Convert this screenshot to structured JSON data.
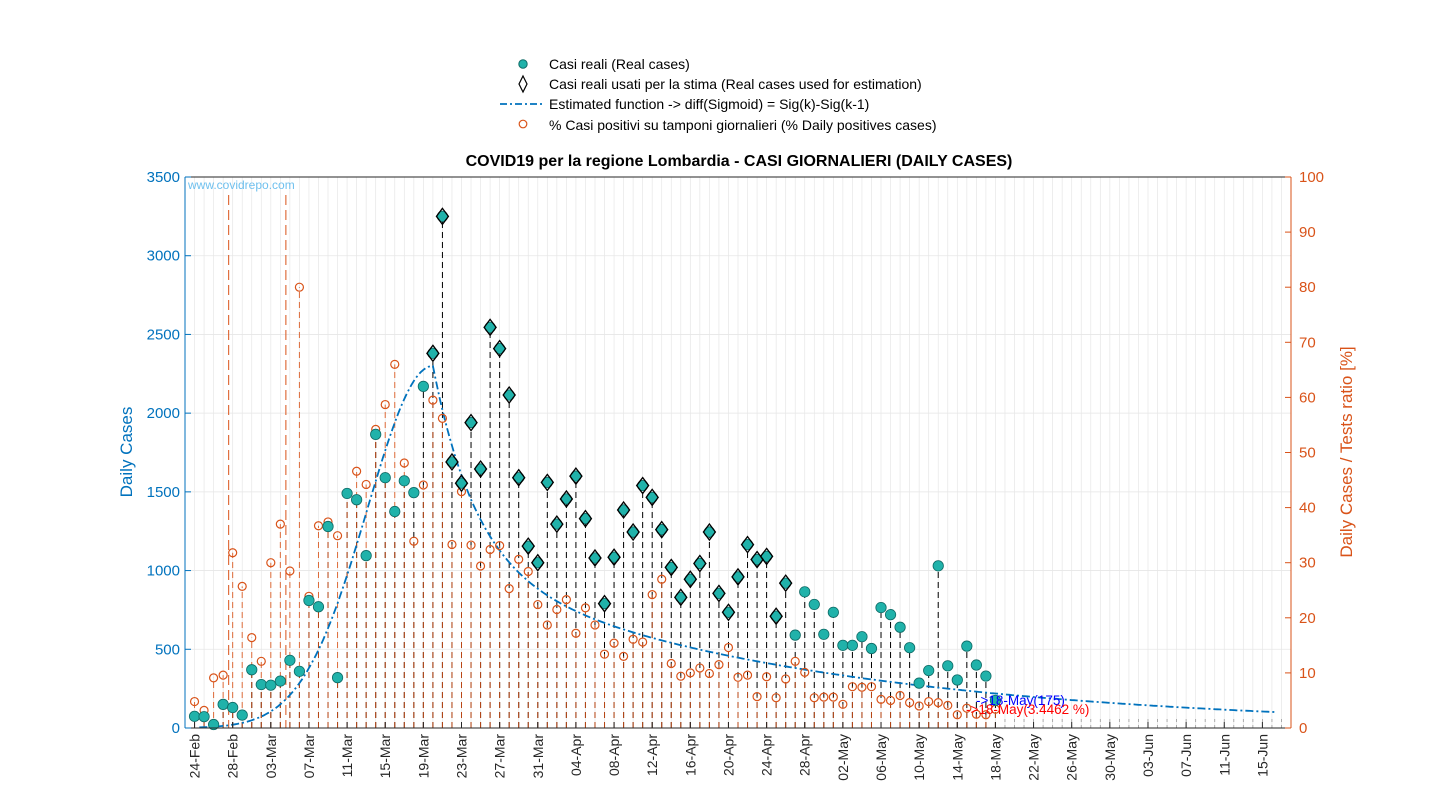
{
  "chart_data": {
    "type": "scatter",
    "title": "COVID19 per la regione Lombardia - CASI GIORNALIERI (DAILY CASES)",
    "watermark": "www.covidrepo.com",
    "ylabel_left": "Daily Cases",
    "ylabel_right": "Daily Cases / Tests ratio [%]",
    "ylim_left": [
      0,
      3500
    ],
    "ylim_right": [
      0,
      100
    ],
    "yticks_left": [
      0,
      500,
      1000,
      1500,
      2000,
      2500,
      3000,
      3500
    ],
    "yticks_right": [
      0,
      10,
      20,
      30,
      40,
      50,
      60,
      70,
      80,
      90,
      100
    ],
    "xlim_days": [
      -1,
      115
    ],
    "x_start_date": "24-Feb",
    "xtick_labels": [
      "24-Feb",
      "28-Feb",
      "03-Mar",
      "07-Mar",
      "11-Mar",
      "15-Mar",
      "19-Mar",
      "23-Mar",
      "27-Mar",
      "31-Mar",
      "04-Apr",
      "08-Apr",
      "12-Apr",
      "16-Apr",
      "20-Apr",
      "24-Apr",
      "28-Apr",
      "02-May",
      "06-May",
      "10-May",
      "14-May",
      "18-May",
      "22-May",
      "26-May",
      "30-May",
      "03-Jun",
      "07-Jun",
      "11-Jun",
      "15-Jun"
    ],
    "grid": true,
    "legend_position": "top",
    "legend": [
      "Casi reali (Real cases)",
      "Casi reali usati per la stima (Real cases used for estimation)",
      "Estimated function -> diff(Sigmoid) = Sig(k)-Sig(k-1)",
      "% Casi positivi su tamponi giornalieri (% Daily positives cases)"
    ],
    "colors": {
      "axis_left": "#0072bd",
      "axis_right": "#d95319",
      "real_fill": "#20b2aa",
      "real_edge": "#0e6b66",
      "fit_line": "#0072bd",
      "ratio": "#d95319",
      "annot_cases": "#0000ff",
      "annot_ratio": "#ff0000",
      "stem": "#000000"
    },
    "daily_cases": [
      74,
      72,
      22,
      150,
      130,
      82,
      370,
      276,
      272,
      298,
      430,
      360,
      810,
      770,
      1280,
      320,
      1490,
      1450,
      1095,
      1865,
      1590,
      1375,
      1570,
      1495,
      2170,
      2380,
      3250,
      1690,
      1555,
      1940,
      1645,
      2545,
      2410,
      2115,
      1590,
      1155,
      1050,
      1560,
      1295,
      1455,
      1600,
      1330,
      1080,
      790,
      1085,
      1385,
      1245,
      1540,
      1465,
      1260,
      1020,
      830,
      945,
      1045,
      1245,
      855,
      735,
      960,
      1165,
      1070,
      1090,
      710,
      920,
      590,
      865,
      785,
      595,
      735,
      525,
      525,
      580,
      505,
      765,
      720,
      640,
      510,
      285,
      365,
      1030,
      395,
      305,
      520,
      400,
      330,
      175
    ],
    "estimation_window_days": [
      24,
      84
    ],
    "ratio_percent": [
      4.8,
      3.2,
      9.1,
      9.6,
      31.8,
      25.7,
      16.4,
      12.1,
      30.0,
      37.0,
      28.5,
      80.0,
      23.9,
      36.7,
      37.4,
      34.9,
      42.6,
      46.6,
      44.2,
      54.2,
      58.7,
      66.0,
      48.1,
      33.9,
      44.1,
      59.5,
      56.2,
      33.3,
      42.9,
      33.2,
      29.4,
      32.4,
      33.1,
      25.3,
      30.6,
      28.4,
      22.4,
      18.7,
      21.5,
      23.3,
      17.2,
      21.8,
      18.7,
      13.4,
      15.4,
      13.0,
      16.1,
      15.6,
      24.2,
      27.0,
      11.7,
      9.4,
      10.0,
      10.9,
      9.9,
      11.5,
      14.6,
      9.2,
      9.6,
      5.7,
      9.3,
      5.5,
      8.9,
      12.1,
      10.1,
      5.5,
      5.6,
      5.6,
      4.3,
      7.5,
      7.4,
      7.5,
      5.2,
      5.0,
      5.9,
      4.6,
      4.0,
      4.8,
      4.6,
      4.1,
      2.4,
      3.6,
      2.5,
      2.4,
      3.4
    ],
    "fit_peak_day": 25,
    "fit_peak_value": 2300,
    "fit_end_value": 150,
    "annotation_cases": "->18-May(175)",
    "annotation_ratio": "->18-May(3.4462 %)"
  }
}
